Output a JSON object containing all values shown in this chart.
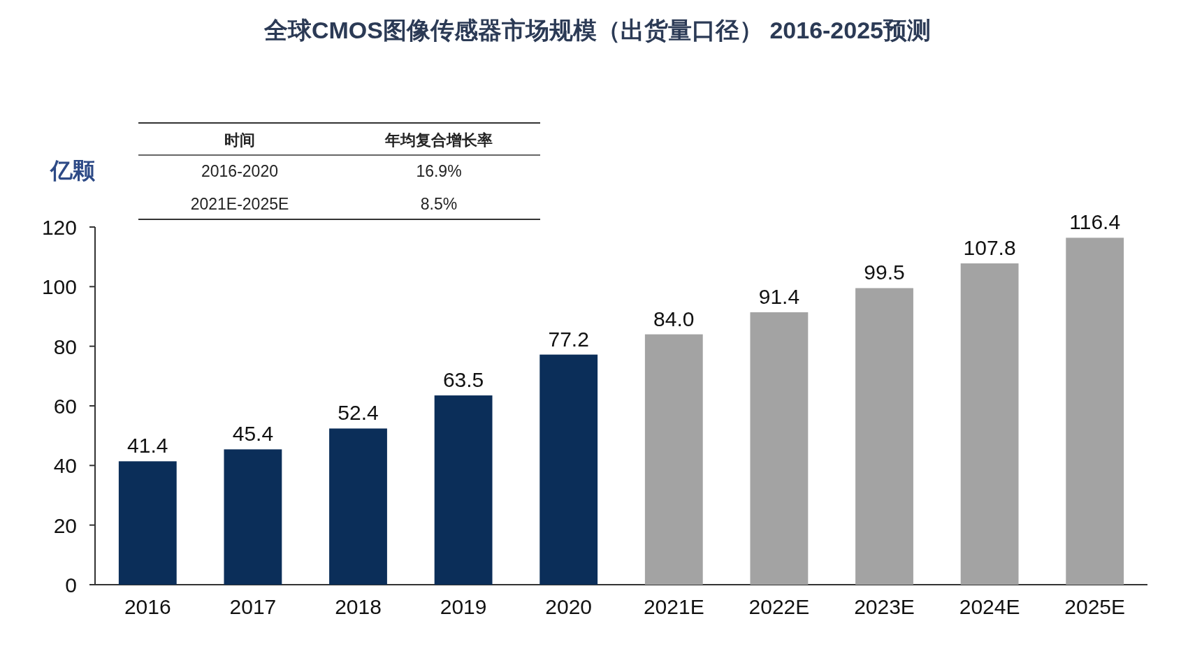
{
  "chart_data": {
    "type": "bar",
    "title": "全球CMOS图像传感器市场规模（出货量口径） 2016-2025预测",
    "ylabel": "亿颗",
    "categories": [
      "2016",
      "2017",
      "2018",
      "2019",
      "2020",
      "2021E",
      "2022E",
      "2023E",
      "2024E",
      "2025E"
    ],
    "values": [
      41.4,
      45.4,
      52.4,
      63.5,
      77.2,
      84.0,
      91.4,
      99.5,
      107.8,
      116.4
    ],
    "value_labels": [
      "41.4",
      "45.4",
      "52.4",
      "63.5",
      "77.2",
      "84.0",
      "91.4",
      "99.5",
      "107.8",
      "116.4"
    ],
    "colors": [
      "#0b2e59",
      "#0b2e59",
      "#0b2e59",
      "#0b2e59",
      "#0b2e59",
      "#a3a3a3",
      "#a3a3a3",
      "#a3a3a3",
      "#a3a3a3",
      "#a3a3a3"
    ],
    "ylim": [
      0,
      120
    ],
    "yticks": [
      0,
      20,
      40,
      60,
      80,
      100,
      120
    ],
    "annotations": [
      "时间",
      "年均复合增长率",
      "2016-2020",
      "16.9%",
      "2021E-2025E",
      "8.5%"
    ]
  }
}
